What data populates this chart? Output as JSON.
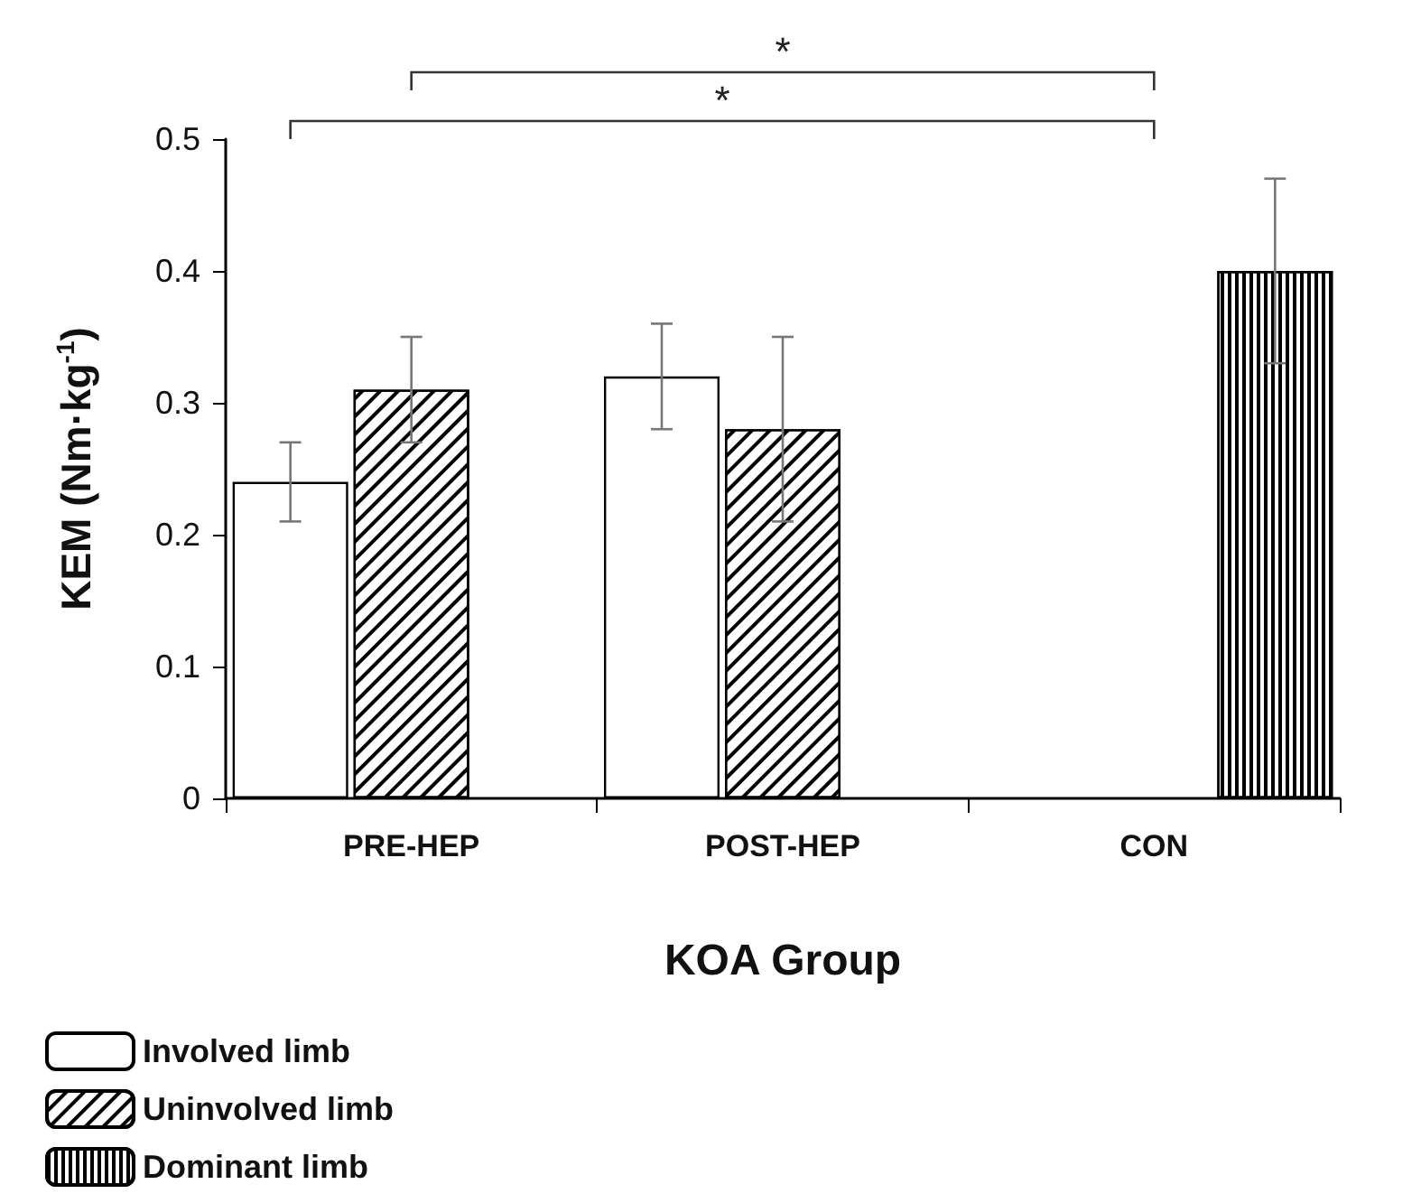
{
  "chart_data": {
    "type": "bar",
    "xlabel": "KOA Group",
    "ylabel": "KEM (Nm·kg$^{-1}$)",
    "categories": [
      "PRE-HEP",
      "POST-HEP",
      "CON"
    ],
    "series": [
      {
        "name": "Involved limb",
        "color": "#ffffff",
        "values": [
          0.24,
          0.32,
          null
        ],
        "errors": [
          0.03,
          0.04,
          null
        ]
      },
      {
        "name": "Uninvolved limb",
        "color": "#000000",
        "values": [
          0.31,
          0.28,
          null
        ],
        "errors": [
          0.04,
          0.07,
          null
        ]
      },
      {
        "name": "Dominant limb",
        "color": "#000000",
        "values": [
          null,
          null,
          0.4
        ],
        "errors": [
          null,
          null,
          0.07
        ]
      }
    ],
    "ylim": [
      0,
      0.5
    ],
    "yticks": [
      0,
      0.1,
      0.2,
      0.3,
      0.4,
      0.5
    ],
    "grid": false,
    "legend": "bottom left",
    "annotations": [
      "*",
      "*"
    ]
  }
}
